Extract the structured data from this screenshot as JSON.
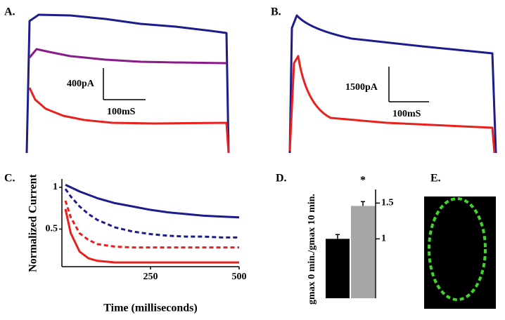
{
  "panels": {
    "a": {
      "label": "A.",
      "scale_current": "400pA",
      "scale_time": "100mS"
    },
    "b": {
      "label": "B.",
      "scale_current": "1500pA",
      "scale_time": "100mS"
    },
    "e": {
      "label": "E."
    }
  },
  "chart_data": [
    {
      "type": "line",
      "label": "C.",
      "y_label": "Normalized Current",
      "x_label": "Time (milliseconds)",
      "x": [
        10,
        25,
        50,
        75,
        100,
        150,
        200,
        250,
        300,
        350,
        400,
        450,
        500
      ],
      "xlim": [
        0,
        500
      ],
      "ylim": [
        0.05,
        1.1
      ],
      "xticks": [
        250,
        500
      ],
      "yticks": [
        0.5,
        1
      ],
      "series": [
        {
          "color": "#1c1c8c",
          "dash": false,
          "values": [
            1.03,
            1.0,
            0.95,
            0.91,
            0.87,
            0.81,
            0.77,
            0.73,
            0.7,
            0.68,
            0.66,
            0.65,
            0.64
          ]
        },
        {
          "color": "#1c1c8c",
          "dash": true,
          "values": [
            0.98,
            0.89,
            0.77,
            0.68,
            0.61,
            0.52,
            0.47,
            0.44,
            0.42,
            0.41,
            0.41,
            0.4,
            0.4
          ]
        },
        {
          "color": "#e8211e",
          "dash": true,
          "values": [
            0.84,
            0.64,
            0.45,
            0.37,
            0.32,
            0.29,
            0.28,
            0.28,
            0.28,
            0.28,
            0.28,
            0.28,
            0.28
          ]
        },
        {
          "color": "#e8211e",
          "dash": false,
          "values": [
            0.74,
            0.45,
            0.23,
            0.15,
            0.12,
            0.1,
            0.1,
            0.1,
            0.1,
            0.1,
            0.1,
            0.1,
            0.1
          ]
        }
      ]
    },
    {
      "type": "bar",
      "label": "D.",
      "y_label": "gmax 0 min./gmax 10 min.",
      "categories": [
        null,
        null
      ],
      "values": [
        1.0,
        1.46
      ],
      "errors": [
        0.06,
        0.06
      ],
      "colors": [
        "#000000",
        "#a6a6a6"
      ],
      "annotation": "*",
      "ylim": [
        0.17,
        1.69
      ],
      "yticks": [
        1,
        1.5
      ]
    }
  ]
}
